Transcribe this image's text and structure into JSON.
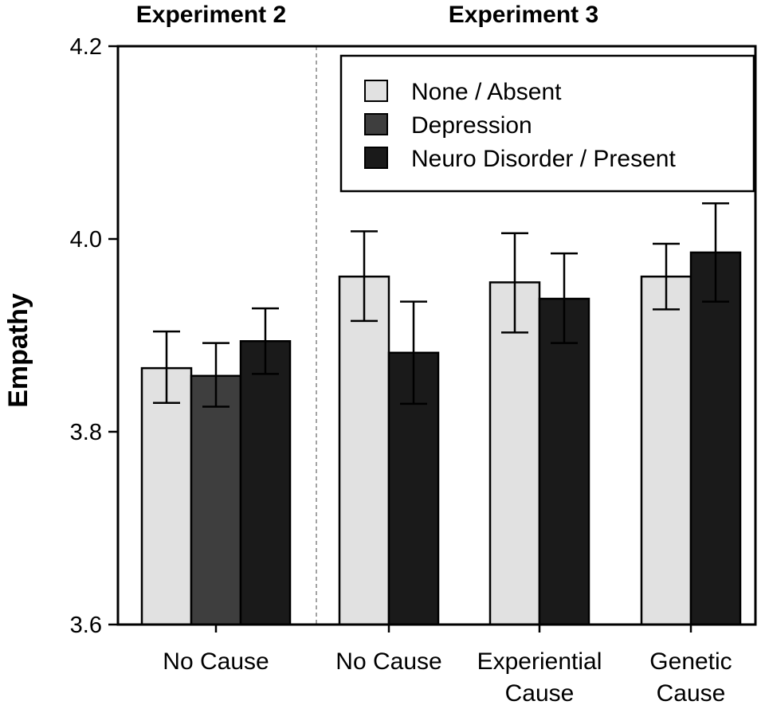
{
  "chart_data": {
    "type": "bar",
    "ylabel": "Empathy",
    "xlabel": "",
    "ylim": [
      3.6,
      4.2
    ],
    "yticks": [
      3.6,
      3.8,
      4.0,
      4.2
    ],
    "ytick_labels": [
      "3.6",
      "3.8",
      "4.0",
      "4.2"
    ],
    "legend": {
      "position": "top-right",
      "entries": [
        {
          "label": "None / Absent",
          "color": "#e1e1e1"
        },
        {
          "label": "Depression",
          "color": "#3e3e3e"
        },
        {
          "label": "Neuro Disorder / Present",
          "color": "#1a1a1a"
        }
      ]
    },
    "panels": [
      {
        "title": "Experiment 2",
        "groups": [
          {
            "label_lines": [
              "No Cause"
            ],
            "bars": [
              {
                "series": "None / Absent",
                "value": 3.866,
                "err_low": 3.83,
                "err_high": 3.904
              },
              {
                "series": "Depression",
                "value": 3.858,
                "err_low": 3.826,
                "err_high": 3.892
              },
              {
                "series": "Neuro Disorder / Present",
                "value": 3.894,
                "err_low": 3.86,
                "err_high": 3.928
              }
            ]
          }
        ]
      },
      {
        "title": "Experiment 3",
        "groups": [
          {
            "label_lines": [
              "No Cause"
            ],
            "bars": [
              {
                "series": "None / Absent",
                "value": 3.961,
                "err_low": 3.915,
                "err_high": 4.008
              },
              {
                "series": "Neuro Disorder / Present",
                "value": 3.882,
                "err_low": 3.829,
                "err_high": 3.935
              }
            ]
          },
          {
            "label_lines": [
              "Experiential",
              "Cause"
            ],
            "bars": [
              {
                "series": "None / Absent",
                "value": 3.955,
                "err_low": 3.903,
                "err_high": 4.006
              },
              {
                "series": "Neuro Disorder / Present",
                "value": 3.938,
                "err_low": 3.892,
                "err_high": 3.985
              }
            ]
          },
          {
            "label_lines": [
              "Genetic",
              "Cause"
            ],
            "bars": [
              {
                "series": "None / Absent",
                "value": 3.961,
                "err_low": 3.927,
                "err_high": 3.995
              },
              {
                "series": "Neuro Disorder / Present",
                "value": 3.986,
                "err_low": 3.935,
                "err_high": 4.037
              }
            ]
          }
        ]
      }
    ]
  }
}
